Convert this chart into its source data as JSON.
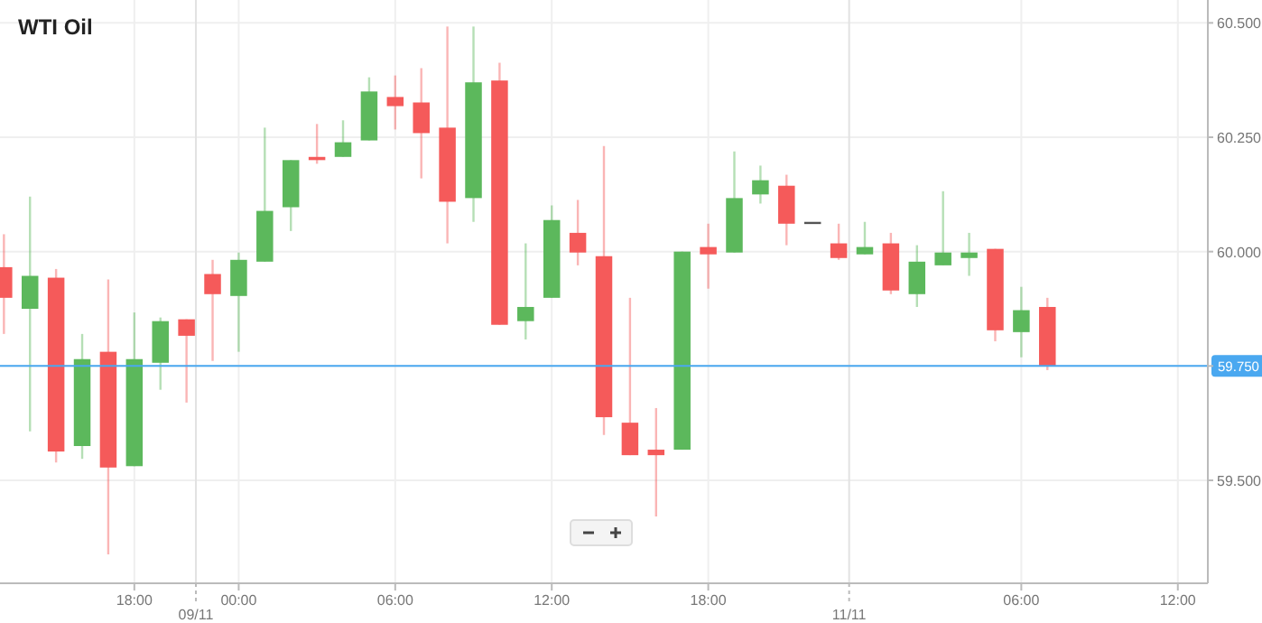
{
  "chart_data": {
    "type": "candlestick",
    "title": "WTI Oil",
    "categories": [
      null,
      null,
      null,
      null,
      null,
      "18:00",
      null,
      null,
      null,
      "00:00",
      null,
      null,
      null,
      null,
      null,
      "06:00",
      null,
      null,
      null,
      null,
      null,
      "12:00",
      null,
      null,
      null,
      null,
      null,
      "18:00",
      null,
      null,
      null,
      null,
      null,
      null,
      null,
      null,
      null,
      null,
      null,
      "06:00",
      null,
      null,
      null,
      null,
      null,
      "12:00"
    ],
    "ohlc": [
      [
        59.966,
        60.038,
        59.82,
        59.899
      ],
      [
        59.875,
        60.12,
        59.607,
        59.947
      ],
      [
        59.943,
        59.962,
        59.539,
        59.563
      ],
      [
        59.575,
        59.82,
        59.547,
        59.765
      ],
      [
        59.781,
        59.939,
        59.338,
        59.528
      ],
      [
        59.531,
        59.867,
        59.531,
        59.765
      ],
      [
        59.757,
        59.856,
        59.698,
        59.848
      ],
      [
        59.852,
        59.852,
        59.67,
        59.816
      ],
      [
        59.951,
        59.982,
        59.761,
        59.907
      ],
      [
        59.903,
        59.998,
        59.781,
        59.982
      ],
      [
        59.978,
        60.271,
        59.978,
        60.089
      ],
      [
        60.097,
        60.2,
        60.045,
        60.2
      ],
      [
        60.207,
        60.279,
        60.192,
        60.2
      ],
      [
        60.207,
        60.287,
        60.207,
        60.239
      ],
      [
        60.243,
        60.381,
        60.243,
        60.35
      ],
      [
        60.338,
        60.385,
        60.267,
        60.318
      ],
      [
        60.326,
        60.401,
        60.16,
        60.259
      ],
      [
        60.271,
        60.492,
        60.018,
        60.109
      ],
      [
        60.117,
        60.492,
        60.065,
        60.37
      ],
      [
        60.374,
        60.413,
        59.84,
        59.84
      ],
      [
        59.848,
        60.018,
        59.808,
        59.879
      ],
      [
        59.899,
        60.101,
        59.899,
        60.069
      ],
      [
        60.041,
        60.113,
        59.97,
        59.998
      ],
      [
        59.99,
        60.231,
        59.599,
        59.638
      ],
      [
        59.626,
        59.899,
        59.555,
        59.555
      ],
      [
        59.567,
        59.658,
        59.421,
        59.555
      ],
      [
        59.567,
        60.0,
        59.567,
        60.0
      ],
      [
        60.01,
        60.061,
        59.919,
        59.994
      ],
      [
        59.998,
        60.219,
        59.998,
        60.117
      ],
      [
        60.125,
        60.188,
        60.105,
        60.156
      ],
      [
        60.144,
        60.168,
        60.014,
        60.061
      ],
      [
        60.065,
        60.065,
        60.065,
        60.065
      ],
      [
        60.018,
        60.061,
        59.982,
        59.986
      ],
      [
        59.994,
        60.065,
        59.994,
        60.01
      ],
      [
        60.018,
        60.041,
        59.907,
        59.915
      ],
      [
        59.907,
        60.014,
        59.879,
        59.978
      ],
      [
        59.97,
        60.132,
        59.97,
        59.998
      ],
      [
        59.986,
        60.041,
        59.947,
        59.998
      ],
      [
        60.006,
        60.006,
        59.804,
        59.828
      ],
      [
        59.824,
        59.923,
        59.769,
        59.872
      ],
      [
        59.879,
        59.899,
        59.741,
        59.75
      ],
      null,
      null,
      null,
      null,
      null
    ],
    "colors": [
      "#f55a5a",
      "#5cb85c",
      "#f55a5a",
      "#5cb85c",
      "#f55a5a",
      "#5cb85c",
      "#5cb85c",
      "#f55a5a",
      "#f55a5a",
      "#5cb85c",
      "#5cb85c",
      "#5cb85c",
      "#f55a5a",
      "#5cb85c",
      "#5cb85c",
      "#f55a5a",
      "#f55a5a",
      "#f55a5a",
      "#5cb85c",
      "#f55a5a",
      "#5cb85c",
      "#5cb85c",
      "#f55a5a",
      "#f55a5a",
      "#f55a5a",
      "#f55a5a",
      "#5cb85c",
      "#f55a5a",
      "#5cb85c",
      "#5cb85c",
      "#f55a5a",
      "#555555",
      "#f55a5a",
      "#5cb85c",
      "#f55a5a",
      "#5cb85c",
      "#5cb85c",
      "#5cb85c",
      "#f55a5a",
      "#5cb85c",
      "#f55a5a",
      null,
      null,
      null,
      null,
      null
    ],
    "ylim": [
      59.275,
      60.55
    ],
    "yticks": [
      {
        "value": 59.5,
        "label": "59.500"
      },
      {
        "value": 59.75,
        "label": null
      },
      {
        "value": 60,
        "label": "60.000"
      },
      {
        "value": 60.25,
        "label": "60.250"
      },
      {
        "value": 60.5,
        "label": "60.500"
      }
    ],
    "grid": true,
    "ref_lines": [
      {
        "axis": "y",
        "value": 59.75,
        "label": "59.750",
        "color": "#4aa8f0"
      }
    ],
    "annotations": [
      "09/11",
      "11/11"
    ]
  }
}
